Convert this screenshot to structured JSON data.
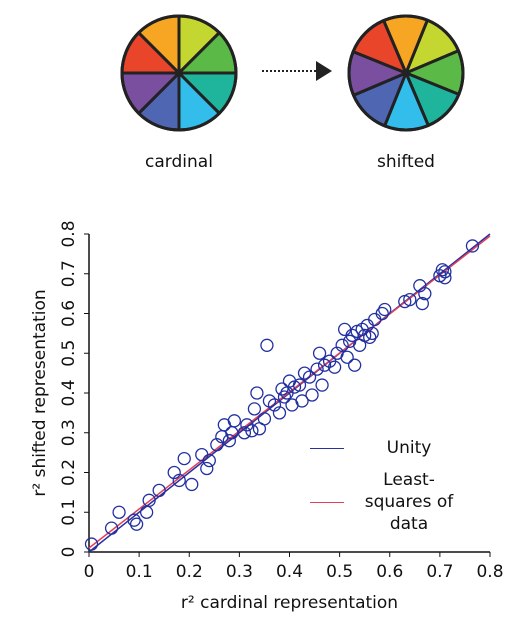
{
  "diagram": {
    "left_label": "cardinal",
    "right_label": "shifted"
  },
  "chart_data": {
    "type": "scatter",
    "x_label": "r² cardinal representation",
    "y_label": "r² shifted representation",
    "xlim": [
      0,
      0.8
    ],
    "ylim": [
      0,
      0.8
    ],
    "xticks": [
      0,
      0.1,
      0.2,
      0.3,
      0.4,
      0.5,
      0.6,
      0.7,
      0.8
    ],
    "yticks": [
      0,
      0.1,
      0.2,
      0.3,
      0.4,
      0.5,
      0.6,
      0.7,
      0.8
    ],
    "legend": "lower right",
    "series": [
      {
        "name": "Unity",
        "mode": "line",
        "color": "#2b2f9e",
        "x": [
          0,
          0.8
        ],
        "values": [
          0,
          0.8
        ]
      },
      {
        "name": "Least-squares of data",
        "mode": "line",
        "color": "#e0405a",
        "x": [
          0,
          0.8
        ],
        "values": [
          0.01,
          0.795
        ]
      },
      {
        "mode": "markers",
        "color": "#2230a0",
        "x": [
          0.005,
          0.045,
          0.06,
          0.09,
          0.095,
          0.115,
          0.12,
          0.14,
          0.17,
          0.18,
          0.19,
          0.205,
          0.225,
          0.235,
          0.24,
          0.255,
          0.265,
          0.27,
          0.28,
          0.285,
          0.29,
          0.31,
          0.315,
          0.325,
          0.33,
          0.335,
          0.34,
          0.35,
          0.355,
          0.36,
          0.37,
          0.38,
          0.385,
          0.39,
          0.395,
          0.4,
          0.405,
          0.41,
          0.42,
          0.425,
          0.43,
          0.44,
          0.445,
          0.455,
          0.46,
          0.465,
          0.47,
          0.48,
          0.49,
          0.495,
          0.505,
          0.51,
          0.515,
          0.52,
          0.525,
          0.53,
          0.535,
          0.54,
          0.545,
          0.55,
          0.555,
          0.56,
          0.565,
          0.57,
          0.585,
          0.59,
          0.63,
          0.64,
          0.66,
          0.665,
          0.67,
          0.7,
          0.705,
          0.71,
          0.71,
          0.765
        ],
        "values": [
          0.02,
          0.06,
          0.1,
          0.08,
          0.07,
          0.1,
          0.13,
          0.155,
          0.2,
          0.18,
          0.235,
          0.17,
          0.245,
          0.21,
          0.23,
          0.27,
          0.29,
          0.32,
          0.28,
          0.3,
          0.33,
          0.3,
          0.32,
          0.305,
          0.36,
          0.4,
          0.31,
          0.335,
          0.52,
          0.38,
          0.37,
          0.35,
          0.41,
          0.39,
          0.4,
          0.43,
          0.37,
          0.415,
          0.42,
          0.38,
          0.45,
          0.44,
          0.395,
          0.46,
          0.5,
          0.42,
          0.47,
          0.48,
          0.465,
          0.5,
          0.52,
          0.56,
          0.49,
          0.53,
          0.545,
          0.47,
          0.555,
          0.52,
          0.56,
          0.545,
          0.57,
          0.54,
          0.55,
          0.585,
          0.6,
          0.61,
          0.63,
          0.635,
          0.67,
          0.625,
          0.65,
          0.695,
          0.71,
          0.705,
          0.69,
          0.77
        ]
      }
    ]
  }
}
